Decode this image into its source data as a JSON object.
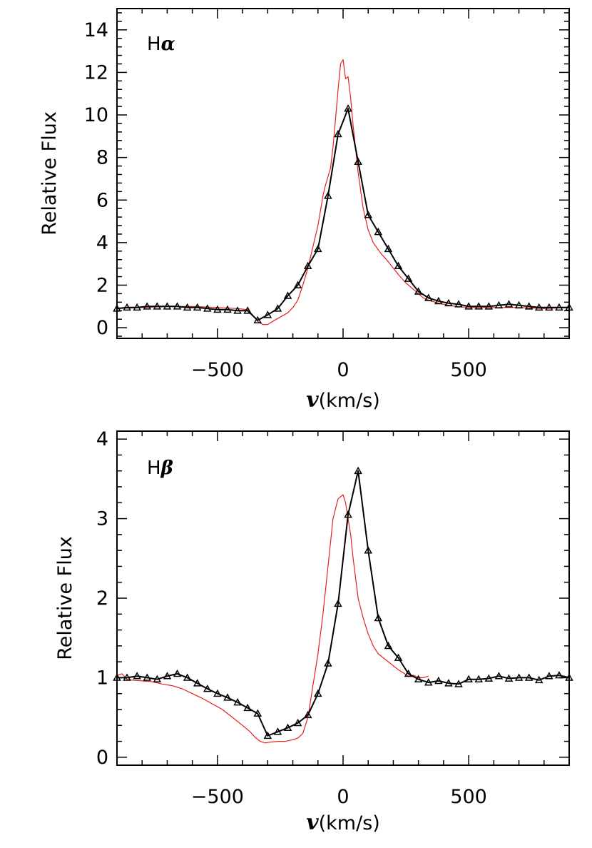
{
  "chart_data": [
    {
      "type": "line",
      "panel_label": {
        "main": "H",
        "greek": "α"
      },
      "ylabel": "Relative Flux",
      "xlabel": {
        "symbol": "v",
        "unit": "(km/s)"
      },
      "xlim": [
        -900,
        900
      ],
      "ylim": [
        -0.5,
        15
      ],
      "x_ticks": [
        -500,
        0,
        500
      ],
      "x_tick_labels": [
        "−500",
        "0",
        "500"
      ],
      "y_ticks": [
        0,
        2,
        4,
        6,
        8,
        10,
        12,
        14
      ],
      "y_tick_labels": [
        "0",
        "2",
        "4",
        "6",
        "8",
        "10",
        "12",
        "14"
      ],
      "series": [
        {
          "color": "#e8201e",
          "marker": "none",
          "x": [
            -900,
            -800,
            -700,
            -600,
            -500,
            -420,
            -380,
            -360,
            -340,
            -320,
            -300,
            -280,
            -250,
            -220,
            -200,
            -180,
            -160,
            -140,
            -120,
            -100,
            -80,
            -70,
            -60,
            -50,
            -40,
            -30,
            -20,
            -10,
            0,
            10,
            20,
            30,
            40,
            60,
            80,
            100,
            120,
            150,
            180,
            200,
            220,
            250,
            280,
            300,
            320,
            350,
            400,
            450,
            500,
            600,
            700,
            800,
            900
          ],
          "y": [
            0.9,
            0.95,
            1.0,
            1.0,
            0.95,
            0.9,
            0.85,
            0.6,
            0.3,
            0.15,
            0.15,
            0.3,
            0.5,
            0.7,
            0.95,
            1.3,
            2.0,
            2.8,
            3.8,
            4.8,
            6.2,
            6.7,
            7.1,
            7.5,
            8.5,
            9.8,
            11.2,
            12.4,
            12.6,
            11.7,
            11.8,
            10.8,
            9.5,
            7.3,
            5.6,
            4.6,
            4.0,
            3.5,
            3.1,
            2.8,
            2.5,
            2.1,
            1.8,
            1.6,
            1.4,
            1.25,
            1.1,
            1.0,
            0.95,
            0.95,
            0.95,
            0.9,
            0.95
          ]
        },
        {
          "color": "#000000",
          "marker": "triangle",
          "x": [
            -900,
            -860,
            -820,
            -780,
            -740,
            -700,
            -660,
            -620,
            -580,
            -540,
            -500,
            -460,
            -420,
            -380,
            -340,
            -300,
            -260,
            -220,
            -180,
            -140,
            -100,
            -60,
            -20,
            20,
            60,
            100,
            140,
            180,
            220,
            260,
            300,
            340,
            380,
            420,
            460,
            500,
            540,
            580,
            620,
            660,
            700,
            740,
            780,
            820,
            860,
            900
          ],
          "y": [
            0.9,
            0.95,
            0.95,
            1.0,
            1.0,
            1.0,
            1.0,
            0.95,
            0.95,
            0.9,
            0.85,
            0.85,
            0.8,
            0.8,
            0.35,
            0.6,
            0.9,
            1.5,
            2.0,
            2.9,
            3.7,
            6.2,
            9.1,
            10.3,
            7.8,
            5.3,
            4.5,
            3.7,
            2.9,
            2.3,
            1.7,
            1.4,
            1.25,
            1.15,
            1.1,
            1.0,
            1.0,
            1.0,
            1.05,
            1.1,
            1.05,
            1.0,
            0.95,
            0.95,
            0.95,
            0.95
          ]
        }
      ]
    },
    {
      "type": "line",
      "panel_label": {
        "main": "H",
        "greek": "β"
      },
      "ylabel": "Relative Flux",
      "xlabel": {
        "symbol": "v",
        "unit": "(km/s)"
      },
      "xlim": [
        -900,
        900
      ],
      "ylim": [
        -0.1,
        4.1
      ],
      "x_ticks": [
        -500,
        0,
        500
      ],
      "x_tick_labels": [
        "−500",
        "0",
        "500"
      ],
      "y_ticks": [
        0,
        1,
        2,
        3,
        4
      ],
      "y_tick_labels": [
        "0",
        "1",
        "2",
        "3",
        "4"
      ],
      "series": [
        {
          "color": "#e8201e",
          "marker": "none",
          "x": [
            -900,
            -880,
            -860,
            -840,
            -800,
            -760,
            -720,
            -680,
            -640,
            -600,
            -560,
            -520,
            -480,
            -440,
            -400,
            -370,
            -350,
            -330,
            -310,
            -290,
            -260,
            -230,
            -200,
            -180,
            -160,
            -140,
            -120,
            -100,
            -80,
            -60,
            -40,
            -20,
            0,
            10,
            20,
            30,
            40,
            60,
            80,
            100,
            120,
            140,
            160,
            180,
            200,
            220,
            240,
            260,
            280,
            300,
            320,
            340
          ],
          "y": [
            1.03,
            1.05,
            0.98,
            0.97,
            0.96,
            0.95,
            0.92,
            0.9,
            0.86,
            0.8,
            0.74,
            0.67,
            0.6,
            0.5,
            0.4,
            0.32,
            0.25,
            0.2,
            0.18,
            0.19,
            0.2,
            0.2,
            0.22,
            0.24,
            0.3,
            0.5,
            0.9,
            1.3,
            1.8,
            2.4,
            3.0,
            3.25,
            3.3,
            3.2,
            3.0,
            2.8,
            2.5,
            2.0,
            1.75,
            1.55,
            1.4,
            1.3,
            1.25,
            1.2,
            1.15,
            1.1,
            1.06,
            1.02,
            1.03,
            1.0,
            1.0,
            1.02
          ]
        },
        {
          "color": "#000000",
          "marker": "triangle",
          "x": [
            -900,
            -860,
            -820,
            -780,
            -740,
            -700,
            -660,
            -620,
            -580,
            -540,
            -500,
            -460,
            -420,
            -380,
            -340,
            -300,
            -260,
            -220,
            -180,
            -140,
            -100,
            -60,
            -20,
            20,
            60,
            100,
            140,
            180,
            220,
            260,
            300,
            340,
            380,
            420,
            460,
            500,
            540,
            580,
            620,
            660,
            700,
            740,
            780,
            820,
            860,
            900
          ],
          "y": [
            1.0,
            1.0,
            1.02,
            1.0,
            0.98,
            1.02,
            1.05,
            1.0,
            0.93,
            0.86,
            0.8,
            0.75,
            0.69,
            0.62,
            0.55,
            0.27,
            0.32,
            0.37,
            0.43,
            0.53,
            0.8,
            1.18,
            1.93,
            3.05,
            3.6,
            2.6,
            1.75,
            1.4,
            1.25,
            1.05,
            0.98,
            0.94,
            0.96,
            0.93,
            0.92,
            0.98,
            0.98,
            0.99,
            1.02,
            0.99,
            1.0,
            1.0,
            0.97,
            1.02,
            1.03,
            1.0
          ]
        }
      ]
    }
  ]
}
